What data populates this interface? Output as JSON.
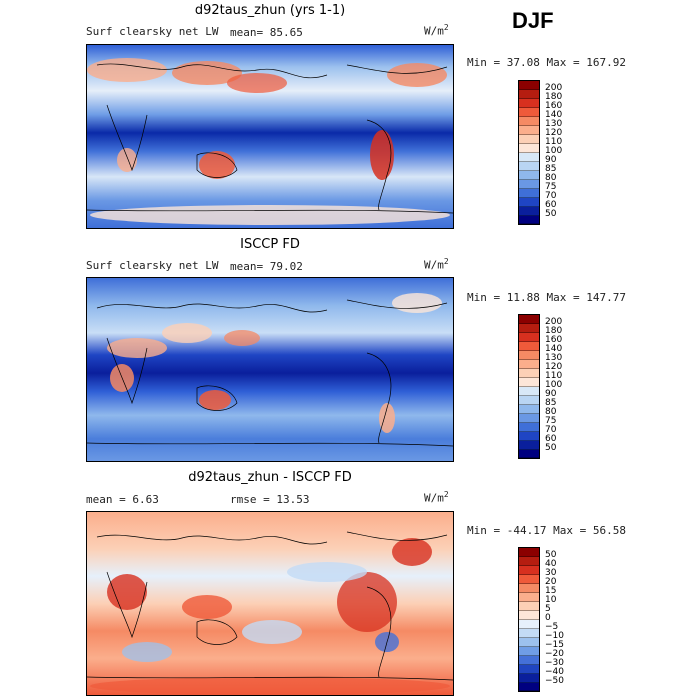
{
  "season": "DJF",
  "panels": [
    {
      "title": "d92taus_zhun (yrs 1-1)",
      "left_label": "Surf clearsky net LW",
      "stat_label": "mean=  85.65",
      "units": "W/m",
      "units_sup": "2",
      "minmax": "Min =  37.08 Max = 167.92",
      "colorbar_labels": [
        "200",
        "180",
        "160",
        "140",
        "130",
        "120",
        "110",
        "100",
        "90",
        "85",
        "80",
        "75",
        "70",
        "60",
        "50"
      ],
      "colorbar_colors": [
        "#8b0000",
        "#b51d10",
        "#d7301f",
        "#ef5a3a",
        "#f58a64",
        "#fbae8c",
        "#fcd0b6",
        "#fde6d8",
        "#d8e8f7",
        "#b9d5f3",
        "#8fb8ec",
        "#6a98e4",
        "#3f6fd8",
        "#1f45c4",
        "#0a1f9c",
        "#000080"
      ]
    },
    {
      "title": "ISCCP FD",
      "left_label": "Surf clearsky net LW",
      "stat_label": "mean=  79.02",
      "units": "W/m",
      "units_sup": "2",
      "minmax": "Min =  11.88 Max = 147.77",
      "colorbar_labels": [
        "200",
        "180",
        "160",
        "140",
        "130",
        "120",
        "110",
        "100",
        "90",
        "85",
        "80",
        "75",
        "70",
        "60",
        "50"
      ],
      "colorbar_colors": [
        "#8b0000",
        "#b51d10",
        "#d7301f",
        "#ef5a3a",
        "#f58a64",
        "#fbae8c",
        "#fcd0b6",
        "#fde6d8",
        "#d8e8f7",
        "#b9d5f3",
        "#8fb8ec",
        "#6a98e4",
        "#3f6fd8",
        "#1f45c4",
        "#0a1f9c",
        "#000080"
      ]
    },
    {
      "title": "d92taus_zhun - ISCCP FD",
      "left_label": "mean =   6.63",
      "stat_label": "rmse =  13.53",
      "units": "W/m",
      "units_sup": "2",
      "minmax": "Min = -44.17 Max =  56.58",
      "colorbar_labels": [
        "50",
        "40",
        "30",
        "20",
        "15",
        "10",
        "5",
        "0",
        "−5",
        "−10",
        "−15",
        "−20",
        "−30",
        "−40",
        "−50"
      ],
      "colorbar_colors": [
        "#8b0000",
        "#b51d10",
        "#d7301f",
        "#ef5a3a",
        "#f58a64",
        "#fbae8c",
        "#fcd0b6",
        "#fde6d8",
        "#e6f0fb",
        "#c3dbf5",
        "#9cc1ee",
        "#6f9de6",
        "#4470d8",
        "#2045c0",
        "#0a1f9c",
        "#000080"
      ]
    }
  ]
}
